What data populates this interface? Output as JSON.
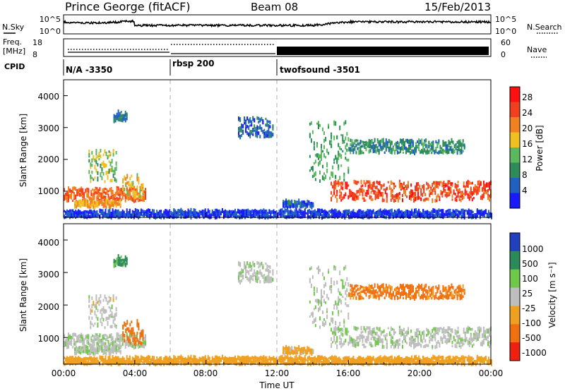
{
  "header": {
    "station": "Prince George (fitACF)",
    "beam": "Beam 08",
    "date": "15/Feb/2013"
  },
  "nsky_panel": {
    "left_label": "N.Sky",
    "right_label": "N.Search",
    "left_ticks": [
      "10^5",
      "10^0"
    ],
    "right_ticks": [
      "10^5",
      "10^0"
    ]
  },
  "freq_panel": {
    "left_label_line1": "Freq.",
    "left_label_line2": "[MHz]",
    "left_ticks": [
      "18",
      "8"
    ],
    "right_ticks": [
      "60",
      "0"
    ],
    "right_label": "Nave"
  },
  "cpid_panel": {
    "label": "CPID",
    "modes": [
      {
        "name": "N/A -3350",
        "start_hour": 0,
        "end_hour": 6
      },
      {
        "name": "rbsp 200",
        "start_hour": 6,
        "end_hour": 12
      },
      {
        "name": "twofsound -3501",
        "start_hour": 12,
        "end_hour": 24
      }
    ]
  },
  "time_axis": {
    "xlabel": "Time UT",
    "ticks": [
      "00:00",
      "04:00",
      "08:00",
      "12:00",
      "16:00",
      "20:00",
      "00:00"
    ],
    "range_hours": [
      0,
      24
    ]
  },
  "power_panel": {
    "ylabel": "Slant Range [km]",
    "y_ticks": [
      "1000",
      "2000",
      "3000",
      "4000"
    ],
    "colorbar_label": "Power [dB]",
    "colorbar_ticks": [
      "4",
      "8",
      "12",
      "16",
      "20",
      "24",
      "28"
    ]
  },
  "velocity_panel": {
    "ylabel": "Slant Range [km]",
    "y_ticks": [
      "1000",
      "2000",
      "3000",
      "4000"
    ],
    "colorbar_label": "Velocity [m s⁻¹]",
    "colorbar_ticks": [
      "1000",
      "500",
      "100",
      "25",
      "-25",
      "-100",
      "-500",
      "-1000"
    ]
  },
  "colors": {
    "power_scale": [
      "#1a1aff",
      "#2060c0",
      "#2d8c5a",
      "#5cb85c",
      "#f0c020",
      "#f08020",
      "#f04020",
      "#ff1010"
    ],
    "velocity_scale": [
      "#2040c0",
      "#2a8a5a",
      "#6fc84a",
      "#bebebe",
      "#f0a020",
      "#f07010",
      "#ee2010"
    ]
  },
  "chart_data": {
    "type": "heatmap",
    "x_range_hours": [
      0,
      24
    ],
    "y_range_km": [
      180,
      4500
    ],
    "power_db_range": [
      0,
      32
    ],
    "velocity_range_ms": [
      -1000,
      1000
    ],
    "mode_change_hours": [
      6,
      12
    ],
    "scatter_regions": [
      {
        "t0": 0.0,
        "t1": 4.6,
        "r0": 700,
        "r1": 1100,
        "power": 24,
        "velocity": 10
      },
      {
        "t0": 0.6,
        "t1": 3.2,
        "r0": 500,
        "r1": 700,
        "power": 20,
        "velocity": 10
      },
      {
        "t0": 1.4,
        "t1": 3.0,
        "r0": 1300,
        "r1": 2300,
        "power": 14,
        "velocity": 0
      },
      {
        "t0": 3.3,
        "t1": 4.5,
        "r0": 800,
        "r1": 1500,
        "power": 18,
        "velocity": -450
      },
      {
        "t0": 2.8,
        "t1": 3.6,
        "r0": 3200,
        "r1": 3500,
        "power": 8,
        "velocity": 120
      },
      {
        "t0": 9.8,
        "t1": 11.8,
        "r0": 2700,
        "r1": 3300,
        "power": 6,
        "velocity": 10
      },
      {
        "t0": 12.3,
        "t1": 14.0,
        "r0": 500,
        "r1": 700,
        "power": 6,
        "velocity": -40
      },
      {
        "t0": 13.8,
        "t1": 16.0,
        "r0": 1300,
        "r1": 3200,
        "power": 12,
        "velocity": 10
      },
      {
        "t0": 15.0,
        "t1": 24.0,
        "r0": 700,
        "r1": 1300,
        "power": 26,
        "velocity": 10
      },
      {
        "t0": 16.0,
        "t1": 22.5,
        "r0": 2200,
        "r1": 2600,
        "power": 10,
        "velocity": -120
      },
      {
        "t0": 0.0,
        "t1": 24.0,
        "r0": 180,
        "r1": 400,
        "power": 4,
        "velocity": -60
      }
    ]
  }
}
